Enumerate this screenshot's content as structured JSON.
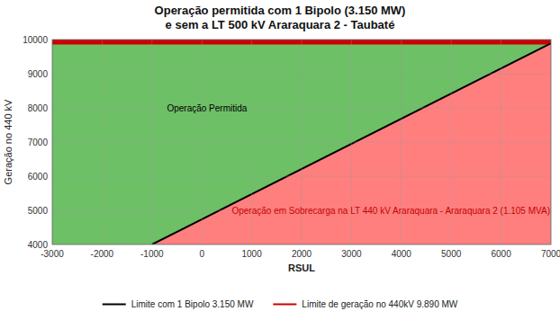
{
  "chart_data": {
    "type": "line",
    "title": "Operação permitida com 1 Bipolo (3.150 MW)\ne sem a LT 500 kV Araraquara 2 - Taubaté",
    "x_label": "RSUL",
    "y_label": "Geração no 440 kV",
    "xlim": [
      -3000,
      7000
    ],
    "ylim": [
      4000,
      10000
    ],
    "xticks": [
      -3000,
      -2000,
      -1000,
      0,
      1000,
      2000,
      3000,
      4000,
      5000,
      6000,
      7000
    ],
    "yticks": [
      4000,
      5000,
      6000,
      7000,
      8000,
      9000,
      10000
    ],
    "grid": true,
    "legend": "bottom",
    "colors": [
      "#6DC066",
      "#FF7F7F"
    ],
    "series": [
      {
        "name": "Limite com 1 Bipolo 3.150 MW",
        "color": "#000000",
        "x": [
          -1000,
          7000
        ],
        "values": [
          4000,
          9890
        ]
      },
      {
        "name": "Limite de geração no 440kV 9.890 MW",
        "color": "#CC0000",
        "x": [
          -3000,
          7000
        ],
        "values": [
          9890,
          9890
        ]
      }
    ],
    "annotations": [
      {
        "text": "Operação Permitida",
        "x": -700,
        "y": 7900,
        "color": "#000000"
      },
      {
        "text": "Operação em Sobrecarga na LT 440 kV Araraquara - Araraquara 2  (1.105 MVA)",
        "x": 600,
        "y": 4900,
        "color": "#CC0000"
      }
    ]
  }
}
